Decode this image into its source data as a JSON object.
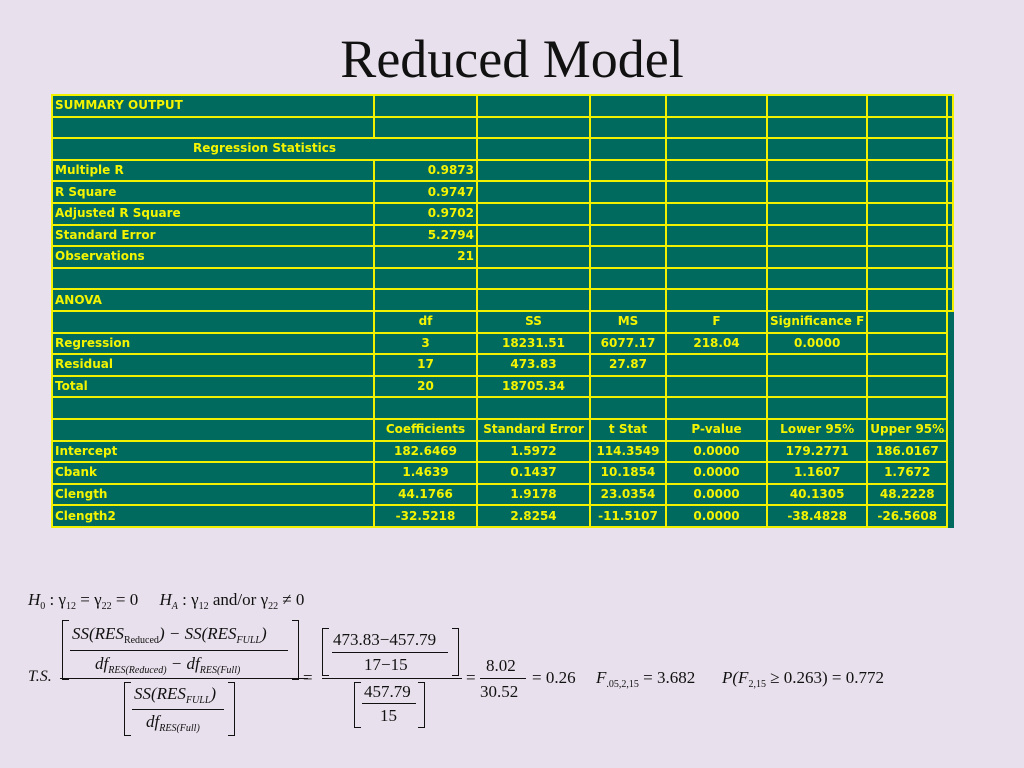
{
  "title": "Reduced Model",
  "table": {
    "rows": [
      {
        "label": "SUMMARY OUTPUT",
        "cells": [
          "",
          "",
          "",
          "",
          "",
          "",
          ""
        ]
      },
      {
        "label": "",
        "cells": [
          "",
          "",
          "",
          "",
          "",
          "",
          ""
        ]
      },
      {
        "label": "Regression Statistics",
        "cells": [
          "",
          "",
          "",
          "",
          "",
          ""
        ],
        "merged": true
      },
      {
        "label": "Multiple R",
        "cells": [
          "0.9873",
          "",
          "",
          "",
          "",
          "",
          ""
        ]
      },
      {
        "label": "R Square",
        "cells": [
          "0.9747",
          "",
          "",
          "",
          "",
          "",
          ""
        ]
      },
      {
        "label": "Adjusted R Square",
        "cells": [
          "0.9702",
          "",
          "",
          "",
          "",
          "",
          ""
        ]
      },
      {
        "label": "Standard Error",
        "cells": [
          "5.2794",
          "",
          "",
          "",
          "",
          "",
          ""
        ]
      },
      {
        "label": "Observations",
        "cells": [
          "21",
          "",
          "",
          "",
          "",
          "",
          ""
        ]
      },
      {
        "label": "",
        "cells": [
          "",
          "",
          "",
          "",
          "",
          "",
          ""
        ]
      },
      {
        "label": "ANOVA",
        "cells": [
          "",
          "",
          "",
          "",
          "",
          "",
          ""
        ]
      },
      {
        "label": "",
        "cells": [
          "df",
          "SS",
          "MS",
          "F",
          "Significance F",
          ""
        ]
      },
      {
        "label": "Regression",
        "cells": [
          "3",
          "18231.51",
          "6077.17",
          "218.04",
          "0.0000",
          ""
        ]
      },
      {
        "label": "Residual",
        "cells": [
          "17",
          "473.83",
          "27.87",
          "",
          "",
          ""
        ]
      },
      {
        "label": "Total",
        "cells": [
          "20",
          "18705.34",
          "",
          "",
          "",
          ""
        ]
      },
      {
        "label": "",
        "cells": [
          "",
          "",
          "",
          "",
          "",
          ""
        ]
      },
      {
        "label": "",
        "cells": [
          "Coefficients",
          "Standard Error",
          "t Stat",
          "P-value",
          "Lower 95%",
          "Upper 95%"
        ]
      },
      {
        "label": "Intercept",
        "cells": [
          "182.6469",
          "1.5972",
          "114.3549",
          "0.0000",
          "179.2771",
          "186.0167"
        ]
      },
      {
        "label": "Cbank",
        "cells": [
          "1.4639",
          "0.1437",
          "10.1854",
          "0.0000",
          "1.1607",
          "1.7672"
        ]
      },
      {
        "label": "Clength",
        "cells": [
          "44.1766",
          "1.9178",
          "23.0354",
          "0.0000",
          "40.1305",
          "48.2228"
        ]
      },
      {
        "label": "Clength2",
        "cells": [
          "-32.5218",
          "2.8254",
          "-11.5107",
          "0.0000",
          "-38.4828",
          "-26.5608"
        ]
      }
    ]
  },
  "formulas": {
    "hypothesis": {
      "h0": "H",
      "h0_sub": "0",
      "h0_text": " : γ",
      "g12": "12",
      "eq": " = γ",
      "g22": "22",
      "eq0": " = 0",
      "ha": "H",
      "ha_sub": "A",
      "ha_text": " : γ",
      "ha_g12": "12",
      "andor": " and/or ",
      "ha_g": "γ",
      "ha_g22": "22",
      "neq0": " ≠ 0"
    },
    "ts_label": "T.S.",
    "ss_res": "SS(RES",
    "reduced": "Reduced",
    "full_caps": "FULL",
    "minus": ") − ",
    "close": ")",
    "df": "df",
    "res_reduced": "RES(Reduced)",
    "res_full": "RES(Full)",
    "minus_df": " − ",
    "num1": "473.83−457.79",
    "den1": "17−15",
    "num2": "457.79",
    "den2": "15",
    "eq": "=",
    "frac_num": "8.02",
    "frac_den": "30.52",
    "result": "= 0.26",
    "f_crit_label": "F",
    "f_crit_sub": ".05,2,15",
    "f_crit_val": " = 3.682",
    "p_label": "P",
    "p_open": "(F",
    "p_sub": "2,15",
    "p_rest": " ≥ 0.263) = 0.772"
  }
}
